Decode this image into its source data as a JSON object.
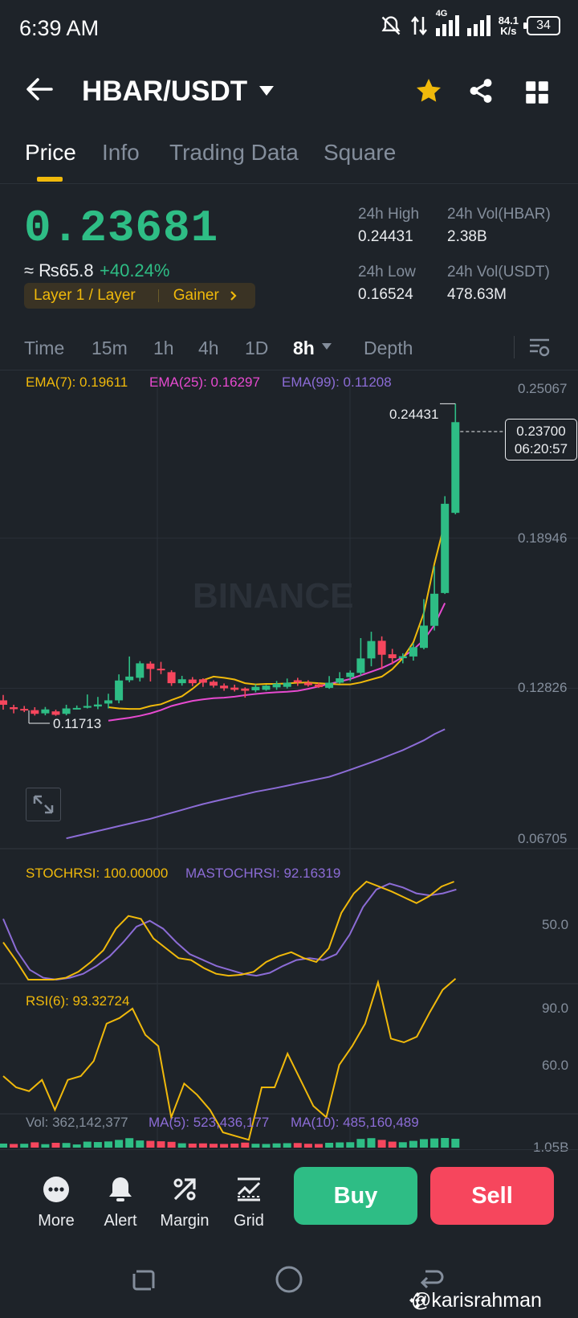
{
  "status": {
    "time": "6:39 AM",
    "network": "4G",
    "speed_value": "84.1",
    "speed_unit": "K/s",
    "battery": "34"
  },
  "header": {
    "pair": "HBAR/USDT",
    "icons": [
      "back-arrow-icon",
      "caret-down-icon",
      "star-icon",
      "share-icon",
      "grid-icon"
    ],
    "star_color": "#f0b90b"
  },
  "tabs": [
    {
      "label": "Price",
      "active": true
    },
    {
      "label": "Info"
    },
    {
      "label": "Trading Data"
    },
    {
      "label": "Square"
    }
  ],
  "price": {
    "last": "0.23681",
    "inr": "≈ ₨65.8",
    "change": "+40.24%",
    "tag_left": "Layer 1 / Layer",
    "tag_right": "Gainer"
  },
  "stats": {
    "high_label": "24h High",
    "high_value": "0.24431",
    "vol_hbar_label": "24h Vol(HBAR)",
    "vol_hbar_value": "2.38B",
    "low_label": "24h Low",
    "low_value": "0.16524",
    "vol_usdt_label": "24h Vol(USDT)",
    "vol_usdt_value": "478.63M"
  },
  "intervals": [
    {
      "label": "Time"
    },
    {
      "label": "15m"
    },
    {
      "label": "1h"
    },
    {
      "label": "4h"
    },
    {
      "label": "1D"
    },
    {
      "label": "8h",
      "active": true
    },
    {
      "label": "Depth"
    }
  ],
  "indicators": {
    "ema7": "EMA(7): 0.19611",
    "ema25": "EMA(25): 0.16297",
    "ema99": "EMA(99): 0.11208",
    "stochrsi": "STOCHRSI: 100.00000",
    "mastochrsi": "MASTOCHRSI: 92.16319",
    "rsi": "RSI(6): 93.32724",
    "vol": "Vol: 362,142,377",
    "ma5": "MA(5): 523,436,177",
    "ma10": "MA(10): 485,160,489"
  },
  "colors": {
    "up": "#2ebd85",
    "down": "#f6465d",
    "ema7": "#f0b90b",
    "ema25": "#e74ad0",
    "ema99": "#8c6cd6",
    "accent": "#f0b90b"
  },
  "chart_data": {
    "type": "candlestick",
    "watermark": "BINANCE",
    "price_axis_ticks": [
      "0.25067",
      "0.18946",
      "0.12826",
      "0.06705"
    ],
    "stoch_axis_ticks": [
      "50.0"
    ],
    "rsi_axis_ticks": [
      "90.0",
      "60.0"
    ],
    "vol_axis_ticks": [
      "1.05B"
    ],
    "max_label": "0.24431",
    "min_label": "0.11713",
    "current_price": "0.23700",
    "countdown": "06:20:57",
    "candles": [
      [
        0.1233,
        0.1215,
        0.1255,
        0.1195
      ],
      [
        0.1205,
        0.1197,
        0.1215,
        0.118
      ],
      [
        0.1198,
        0.1193,
        0.121,
        0.1185
      ],
      [
        0.1193,
        0.1178,
        0.1205,
        0.1171
      ],
      [
        0.118,
        0.1196,
        0.1206,
        0.1172
      ],
      [
        0.1188,
        0.1174,
        0.1195,
        0.117
      ],
      [
        0.1178,
        0.12,
        0.1215,
        0.1172
      ],
      [
        0.1202,
        0.1202,
        0.1212,
        0.1196
      ],
      [
        0.1203,
        0.121,
        0.1257,
        0.12
      ],
      [
        0.1208,
        0.1216,
        0.1247,
        0.1197
      ],
      [
        0.122,
        0.1233,
        0.126,
        0.12
      ],
      [
        0.1233,
        0.1314,
        0.1339,
        0.1221
      ],
      [
        0.1315,
        0.133,
        0.1412,
        0.1307
      ],
      [
        0.1325,
        0.1384,
        0.1393,
        0.131
      ],
      [
        0.1383,
        0.1361,
        0.1392,
        0.131
      ],
      [
        0.1362,
        0.1356,
        0.139,
        0.134
      ],
      [
        0.1348,
        0.1303,
        0.1356,
        0.1292
      ],
      [
        0.1303,
        0.1319,
        0.1333,
        0.1293
      ],
      [
        0.1318,
        0.1303,
        0.1328,
        0.1291
      ],
      [
        0.1319,
        0.1305,
        0.1323,
        0.1288
      ],
      [
        0.1309,
        0.1293,
        0.1315,
        0.1285
      ],
      [
        0.1293,
        0.1282,
        0.1302,
        0.1272
      ],
      [
        0.1285,
        0.1276,
        0.1297,
        0.1269
      ],
      [
        0.1281,
        0.1272,
        0.1286,
        0.1244
      ],
      [
        0.1274,
        0.1288,
        0.1299,
        0.1266
      ],
      [
        0.1276,
        0.1293,
        0.1296,
        0.1272
      ],
      [
        0.1286,
        0.1301,
        0.1312,
        0.1276
      ],
      [
        0.1288,
        0.1305,
        0.1322,
        0.1281
      ],
      [
        0.1315,
        0.1306,
        0.1325,
        0.1292
      ],
      [
        0.1305,
        0.1295,
        0.1315,
        0.1289
      ],
      [
        0.1298,
        0.1287,
        0.1305,
        0.1284
      ],
      [
        0.1284,
        0.1305,
        0.1332,
        0.128
      ],
      [
        0.1305,
        0.1323,
        0.1348,
        0.13
      ],
      [
        0.1328,
        0.1346,
        0.1355,
        0.1312
      ],
      [
        0.1345,
        0.1404,
        0.1487,
        0.1334
      ],
      [
        0.1404,
        0.1475,
        0.1513,
        0.1372
      ],
      [
        0.1476,
        0.1419,
        0.1494,
        0.136
      ],
      [
        0.1421,
        0.1405,
        0.1443,
        0.138
      ],
      [
        0.1405,
        0.1413,
        0.1425,
        0.1384
      ],
      [
        0.1412,
        0.145,
        0.1466,
        0.1395
      ],
      [
        0.1447,
        0.1538,
        0.1646,
        0.1441
      ],
      [
        0.1537,
        0.1668,
        0.178,
        0.1518
      ],
      [
        0.1671,
        0.2035,
        0.2066,
        0.1667
      ],
      [
        0.1998,
        0.2368,
        0.2443,
        0.1992
      ]
    ],
    "ema7": [
      0.1205,
      0.12,
      0.1198,
      0.1198,
      0.121,
      0.1217,
      0.1234,
      0.125,
      0.128,
      0.1315,
      0.133,
      0.1325,
      0.1318,
      0.1303,
      0.1298,
      0.13,
      0.13,
      0.1302,
      0.1305,
      0.1306,
      0.1303,
      0.13,
      0.1298,
      0.1298,
      0.1306,
      0.1318,
      0.133,
      0.136,
      0.1405,
      0.147,
      0.159,
      0.179,
      0.196
    ],
    "ema25": [
      0.115,
      0.1156,
      0.1162,
      0.117,
      0.118,
      0.1193,
      0.121,
      0.1221,
      0.1231,
      0.1237,
      0.1242,
      0.1244,
      0.1248,
      0.1254,
      0.1259,
      0.1263,
      0.1266,
      0.1268,
      0.1272,
      0.128,
      0.129,
      0.13,
      0.131,
      0.132,
      0.1335,
      0.135,
      0.1365,
      0.1385,
      0.141,
      0.144,
      0.148,
      0.154,
      0.163
    ],
    "ema99": [
      0.067,
      0.068,
      0.069,
      0.07,
      0.071,
      0.072,
      0.073,
      0.074,
      0.075,
      0.0762,
      0.0774,
      0.0786,
      0.0798,
      0.081,
      0.082,
      0.083,
      0.084,
      0.085,
      0.086,
      0.0868,
      0.0876,
      0.0885,
      0.0894,
      0.0903,
      0.0912,
      0.0921,
      0.0935,
      0.095,
      0.0965,
      0.098,
      0.0996,
      0.1013,
      0.103,
      0.105,
      0.107,
      0.1095,
      0.1115
    ],
    "stochrsi": [
      38,
      20,
      0,
      0,
      0,
      2,
      8,
      18,
      30,
      52,
      65,
      62,
      42,
      32,
      22,
      20,
      12,
      6,
      4,
      5,
      8,
      18,
      24,
      28,
      22,
      18,
      32,
      68,
      88,
      100,
      95,
      90,
      84,
      78,
      85,
      95,
      100
    ],
    "mastochrsi": [
      62,
      30,
      10,
      2,
      0,
      2,
      6,
      14,
      24,
      38,
      54,
      60,
      52,
      38,
      26,
      20,
      14,
      10,
      6,
      4,
      7,
      14,
      20,
      22,
      20,
      26,
      46,
      74,
      92,
      98,
      94,
      88,
      86,
      88,
      92
    ],
    "rsi6": [
      54,
      48,
      46,
      52,
      36,
      52,
      54,
      62,
      82,
      85,
      90,
      76,
      70,
      32,
      50,
      44,
      36,
      24,
      22,
      20,
      48,
      48,
      66,
      52,
      38,
      32,
      60,
      70,
      82,
      104,
      74,
      72,
      75,
      88,
      100,
      106
    ],
    "volume": [
      {
        "v": 0.42,
        "up": true
      },
      {
        "v": 0.38,
        "up": false
      },
      {
        "v": 0.4,
        "up": true
      },
      {
        "v": 0.55,
        "up": false
      },
      {
        "v": 0.36,
        "up": true
      },
      {
        "v": 0.5,
        "up": false
      },
      {
        "v": 0.48,
        "up": true
      },
      {
        "v": 0.33,
        "up": true
      },
      {
        "v": 0.62,
        "up": true
      },
      {
        "v": 0.58,
        "up": true
      },
      {
        "v": 0.64,
        "up": true
      },
      {
        "v": 0.8,
        "up": true
      },
      {
        "v": 0.98,
        "up": true
      },
      {
        "v": 0.74,
        "up": true
      },
      {
        "v": 0.7,
        "up": false
      },
      {
        "v": 0.66,
        "up": false
      },
      {
        "v": 0.6,
        "up": false
      },
      {
        "v": 0.45,
        "up": true
      },
      {
        "v": 0.42,
        "up": false
      },
      {
        "v": 0.44,
        "up": false
      },
      {
        "v": 0.4,
        "up": false
      },
      {
        "v": 0.38,
        "up": false
      },
      {
        "v": 0.42,
        "up": false
      },
      {
        "v": 0.52,
        "up": false
      },
      {
        "v": 0.4,
        "up": true
      },
      {
        "v": 0.38,
        "up": true
      },
      {
        "v": 0.44,
        "up": true
      },
      {
        "v": 0.46,
        "up": true
      },
      {
        "v": 0.48,
        "up": false
      },
      {
        "v": 0.4,
        "up": false
      },
      {
        "v": 0.38,
        "up": false
      },
      {
        "v": 0.5,
        "up": true
      },
      {
        "v": 0.54,
        "up": true
      },
      {
        "v": 0.56,
        "up": true
      },
      {
        "v": 0.9,
        "up": true
      },
      {
        "v": 0.98,
        "up": true
      },
      {
        "v": 0.8,
        "up": false
      },
      {
        "v": 0.62,
        "up": false
      },
      {
        "v": 0.56,
        "up": true
      },
      {
        "v": 0.7,
        "up": true
      },
      {
        "v": 0.88,
        "up": true
      },
      {
        "v": 0.95,
        "up": true
      },
      {
        "v": 1.0,
        "up": true
      },
      {
        "v": 0.92,
        "up": true
      }
    ]
  },
  "actions": [
    {
      "label": "More",
      "icon": "more-icon"
    },
    {
      "label": "Alert",
      "icon": "bell-icon"
    },
    {
      "label": "Margin",
      "icon": "margin-icon"
    },
    {
      "label": "Grid",
      "icon": "grid-trading-icon"
    }
  ],
  "buttons": {
    "buy": "Buy",
    "sell": "Sell"
  },
  "watermark_user": "@karisrahman"
}
